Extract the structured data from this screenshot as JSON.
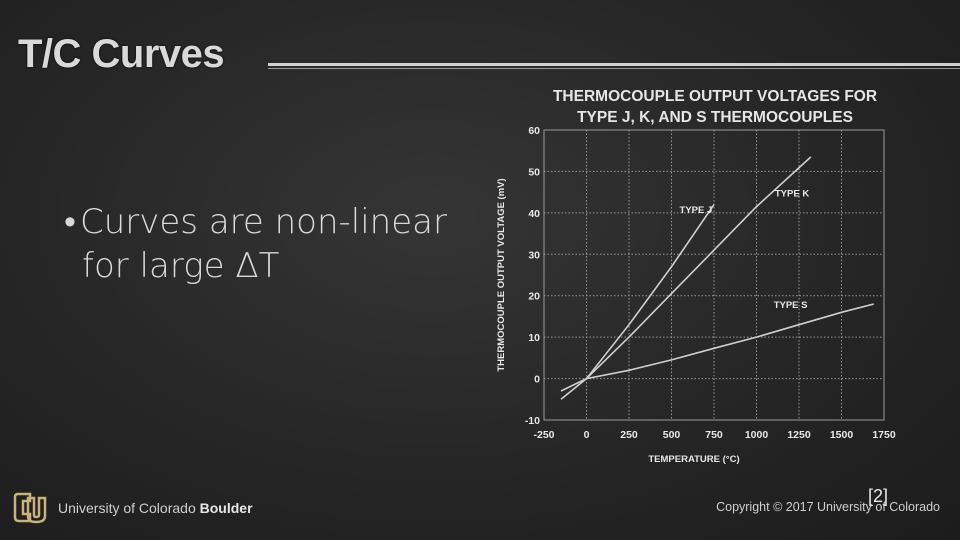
{
  "slide": {
    "title": "T/C Curves",
    "bullet_marker": "•",
    "bullet_line1": "Curves are non-linear",
    "bullet_line2": "for large ΔT",
    "citation": "[2]"
  },
  "footer": {
    "university_prefix": "University of Colorado ",
    "university_bold": "Boulder",
    "copyright": "Copyright © 2017 University of Colorado",
    "logo_icon": "cu-logo-icon"
  },
  "chart_data": {
    "type": "line",
    "title_line1": "THERMOCOUPLE OUTPUT VOLTAGES FOR",
    "title_line2": "TYPE J, K, AND S THERMOCOUPLES",
    "xlabel": "TEMPERATURE (°C)",
    "ylabel": "THERMOCOUPLE OUTPUT VOLTAGE (mV)",
    "xlim": [
      -250,
      1750
    ],
    "ylim": [
      -10,
      60
    ],
    "xticks": [
      -250,
      0,
      250,
      500,
      750,
      1000,
      1250,
      1500,
      1750
    ],
    "yticks": [
      -10,
      0,
      10,
      20,
      30,
      40,
      50,
      60
    ],
    "grid": true,
    "series": [
      {
        "name": "TYPE J",
        "points": [
          [
            -150,
            -5
          ],
          [
            0,
            0
          ],
          [
            250,
            13
          ],
          [
            500,
            27
          ],
          [
            750,
            42
          ]
        ]
      },
      {
        "name": "TYPE K",
        "points": [
          [
            0,
            0
          ],
          [
            250,
            10
          ],
          [
            500,
            20.5
          ],
          [
            750,
            31
          ],
          [
            1000,
            41.5
          ],
          [
            1320,
            53.5
          ]
        ]
      },
      {
        "name": "TYPE S",
        "points": [
          [
            -150,
            -3
          ],
          [
            0,
            0
          ],
          [
            250,
            2
          ],
          [
            500,
            4.5
          ],
          [
            750,
            7.3
          ],
          [
            1000,
            10
          ],
          [
            1250,
            13
          ],
          [
            1500,
            16
          ],
          [
            1690,
            18
          ]
        ]
      }
    ],
    "series_label_anchor": [
      [
        740,
        40
      ],
      [
        1310,
        44
      ],
      [
        1300,
        17
      ]
    ],
    "label_color": "#e8e8e8",
    "line_color": "#d0d0d0",
    "grid_color": "#9a9a9a"
  }
}
